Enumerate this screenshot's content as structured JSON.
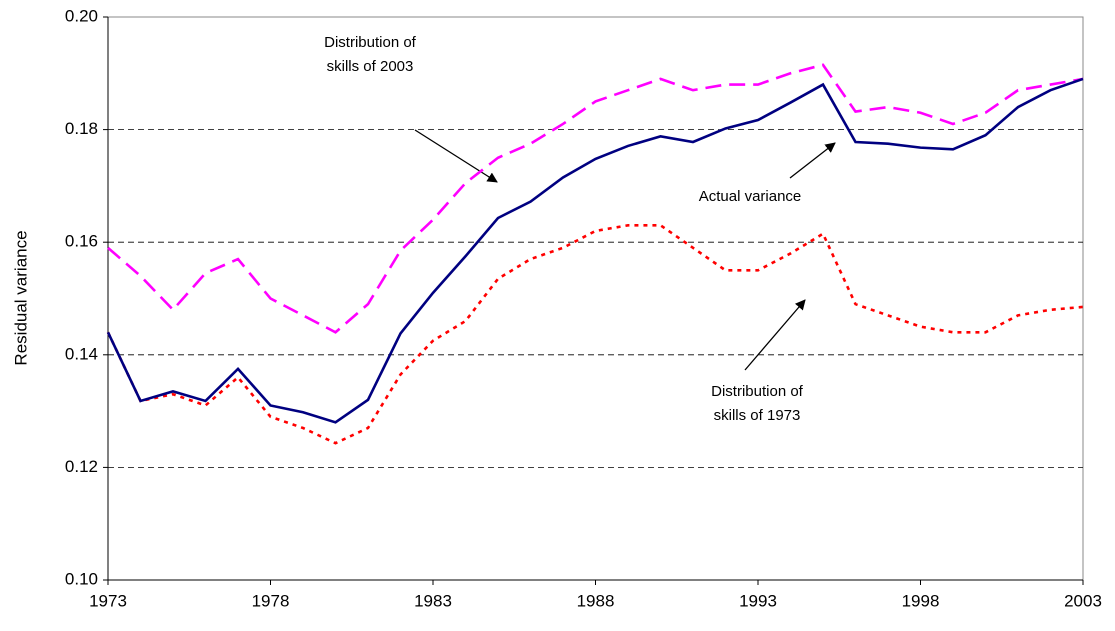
{
  "chart_data": {
    "type": "line",
    "y_label": "Residual variance",
    "x": [
      1973,
      1974,
      1975,
      1976,
      1977,
      1978,
      1979,
      1980,
      1981,
      1982,
      1983,
      1984,
      1985,
      1986,
      1987,
      1988,
      1989,
      1990,
      1991,
      1992,
      1993,
      1994,
      1995,
      1996,
      1997,
      1998,
      1999,
      2000,
      2001,
      2002,
      2003
    ],
    "series": [
      {
        "name": "Actual variance",
        "color": "#000080",
        "style": "solid",
        "values": [
          0.144,
          0.1318,
          0.1335,
          0.1318,
          0.1375,
          0.131,
          0.1298,
          0.128,
          0.132,
          0.1438,
          0.151,
          0.1575,
          0.1643,
          0.1672,
          0.1715,
          0.1748,
          0.1771,
          0.1788,
          0.1778,
          0.1802,
          0.1817,
          0.1848,
          0.188,
          0.1778,
          0.1775,
          0.1768,
          0.1765,
          0.179,
          0.184,
          0.187,
          0.189
        ]
      },
      {
        "name": "Distribution of skills of 2003",
        "color": "#ff00ff",
        "style": "dashed",
        "values": [
          0.159,
          0.154,
          0.148,
          0.1545,
          0.157,
          0.15,
          0.147,
          0.144,
          0.149,
          0.1585,
          0.164,
          0.1705,
          0.175,
          0.1775,
          0.181,
          0.185,
          0.187,
          0.189,
          0.187,
          0.188,
          0.188,
          0.19,
          0.1915,
          0.1832,
          0.184,
          0.183,
          0.181,
          0.183,
          0.187,
          0.188,
          0.189
        ]
      },
      {
        "name": "Distribution of skills of 1973",
        "color": "#ff0000",
        "style": "dotted",
        "values": [
          0.144,
          0.1318,
          0.133,
          0.131,
          0.136,
          0.129,
          0.127,
          0.1243,
          0.127,
          0.1365,
          0.1425,
          0.146,
          0.1535,
          0.157,
          0.159,
          0.162,
          0.163,
          0.163,
          0.159,
          0.155,
          0.155,
          0.158,
          0.1615,
          0.149,
          0.147,
          0.145,
          0.144,
          0.144,
          0.147,
          0.148,
          0.1485
        ]
      }
    ],
    "xlim": [
      1973,
      2003
    ],
    "xticks": [
      1973,
      1978,
      1983,
      1988,
      1993,
      1998,
      2003
    ],
    "ylim": [
      0.1,
      0.2
    ],
    "yticks": [
      {
        "value": 0.1,
        "label": "0.10"
      },
      {
        "value": 0.12,
        "label": "0.12"
      },
      {
        "value": 0.14,
        "label": "0.14"
      },
      {
        "value": 0.16,
        "label": "0.16"
      },
      {
        "value": 0.18,
        "label": "0.18"
      },
      {
        "value": 0.2,
        "label": "0.20"
      }
    ],
    "grid": true,
    "annotations": [
      {
        "lines": [
          "Distribution of",
          "skills of 2003"
        ]
      },
      {
        "lines": [
          "Actual variance"
        ]
      },
      {
        "lines": [
          "Distribution of",
          "skills of 1973"
        ]
      }
    ]
  }
}
